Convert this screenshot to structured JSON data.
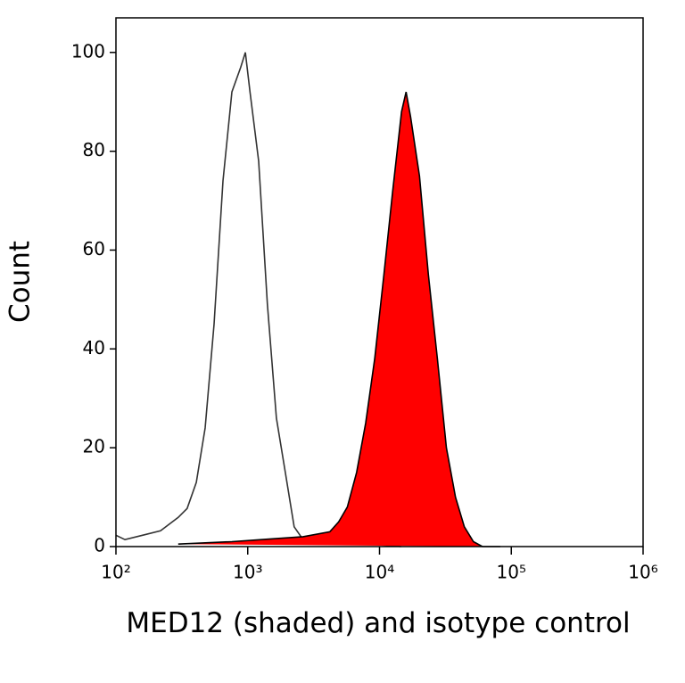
{
  "chart_data": {
    "type": "histogram-overlay",
    "xlabel": "MED12 (shaded) and isotype control",
    "ylabel": "Count",
    "xscale": "log",
    "xlim": [
      100,
      1000000
    ],
    "ylim": [
      0,
      107
    ],
    "xticks": [
      {
        "value": 100,
        "label": "10²"
      },
      {
        "value": 1000,
        "label": "10³"
      },
      {
        "value": 10000,
        "label": "10⁴"
      },
      {
        "value": 100000,
        "label": "10⁵"
      },
      {
        "value": 1000000,
        "label": "10⁶"
      }
    ],
    "yticks": [
      0,
      20,
      40,
      60,
      80,
      100
    ],
    "series": [
      {
        "name": "isotype control",
        "color": "#333333",
        "fill": false,
        "x": [
          100,
          117,
          159,
          218,
          297,
          347,
          407,
          475,
          555,
          649,
          758,
          885,
          960,
          1040,
          1210,
          1410,
          1650,
          1930,
          2250,
          2630,
          3600,
          6700,
          14600
        ],
        "values": [
          2.3,
          1.4,
          2.3,
          3.2,
          5.9,
          7.7,
          13,
          24,
          45,
          74,
          92,
          97,
          100,
          92,
          78,
          49,
          26,
          15,
          4,
          1.4,
          1,
          0.7,
          0
        ]
      },
      {
        "name": "MED12",
        "color": "#ff0000",
        "edgecolor": "#000000",
        "fill": true,
        "x": [
          297,
          758,
          1410,
          2630,
          4200,
          4900,
          5700,
          6700,
          7860,
          9200,
          10800,
          12600,
          14700,
          15900,
          17200,
          20100,
          23500,
          27500,
          32200,
          37700,
          44000,
          51600,
          60400,
          82500
        ],
        "values": [
          0.5,
          1,
          1.5,
          2,
          3,
          5,
          8,
          15,
          25,
          38,
          55,
          72,
          88,
          92,
          87,
          75,
          55,
          38,
          20,
          10,
          4,
          1,
          0,
          0
        ]
      }
    ]
  }
}
